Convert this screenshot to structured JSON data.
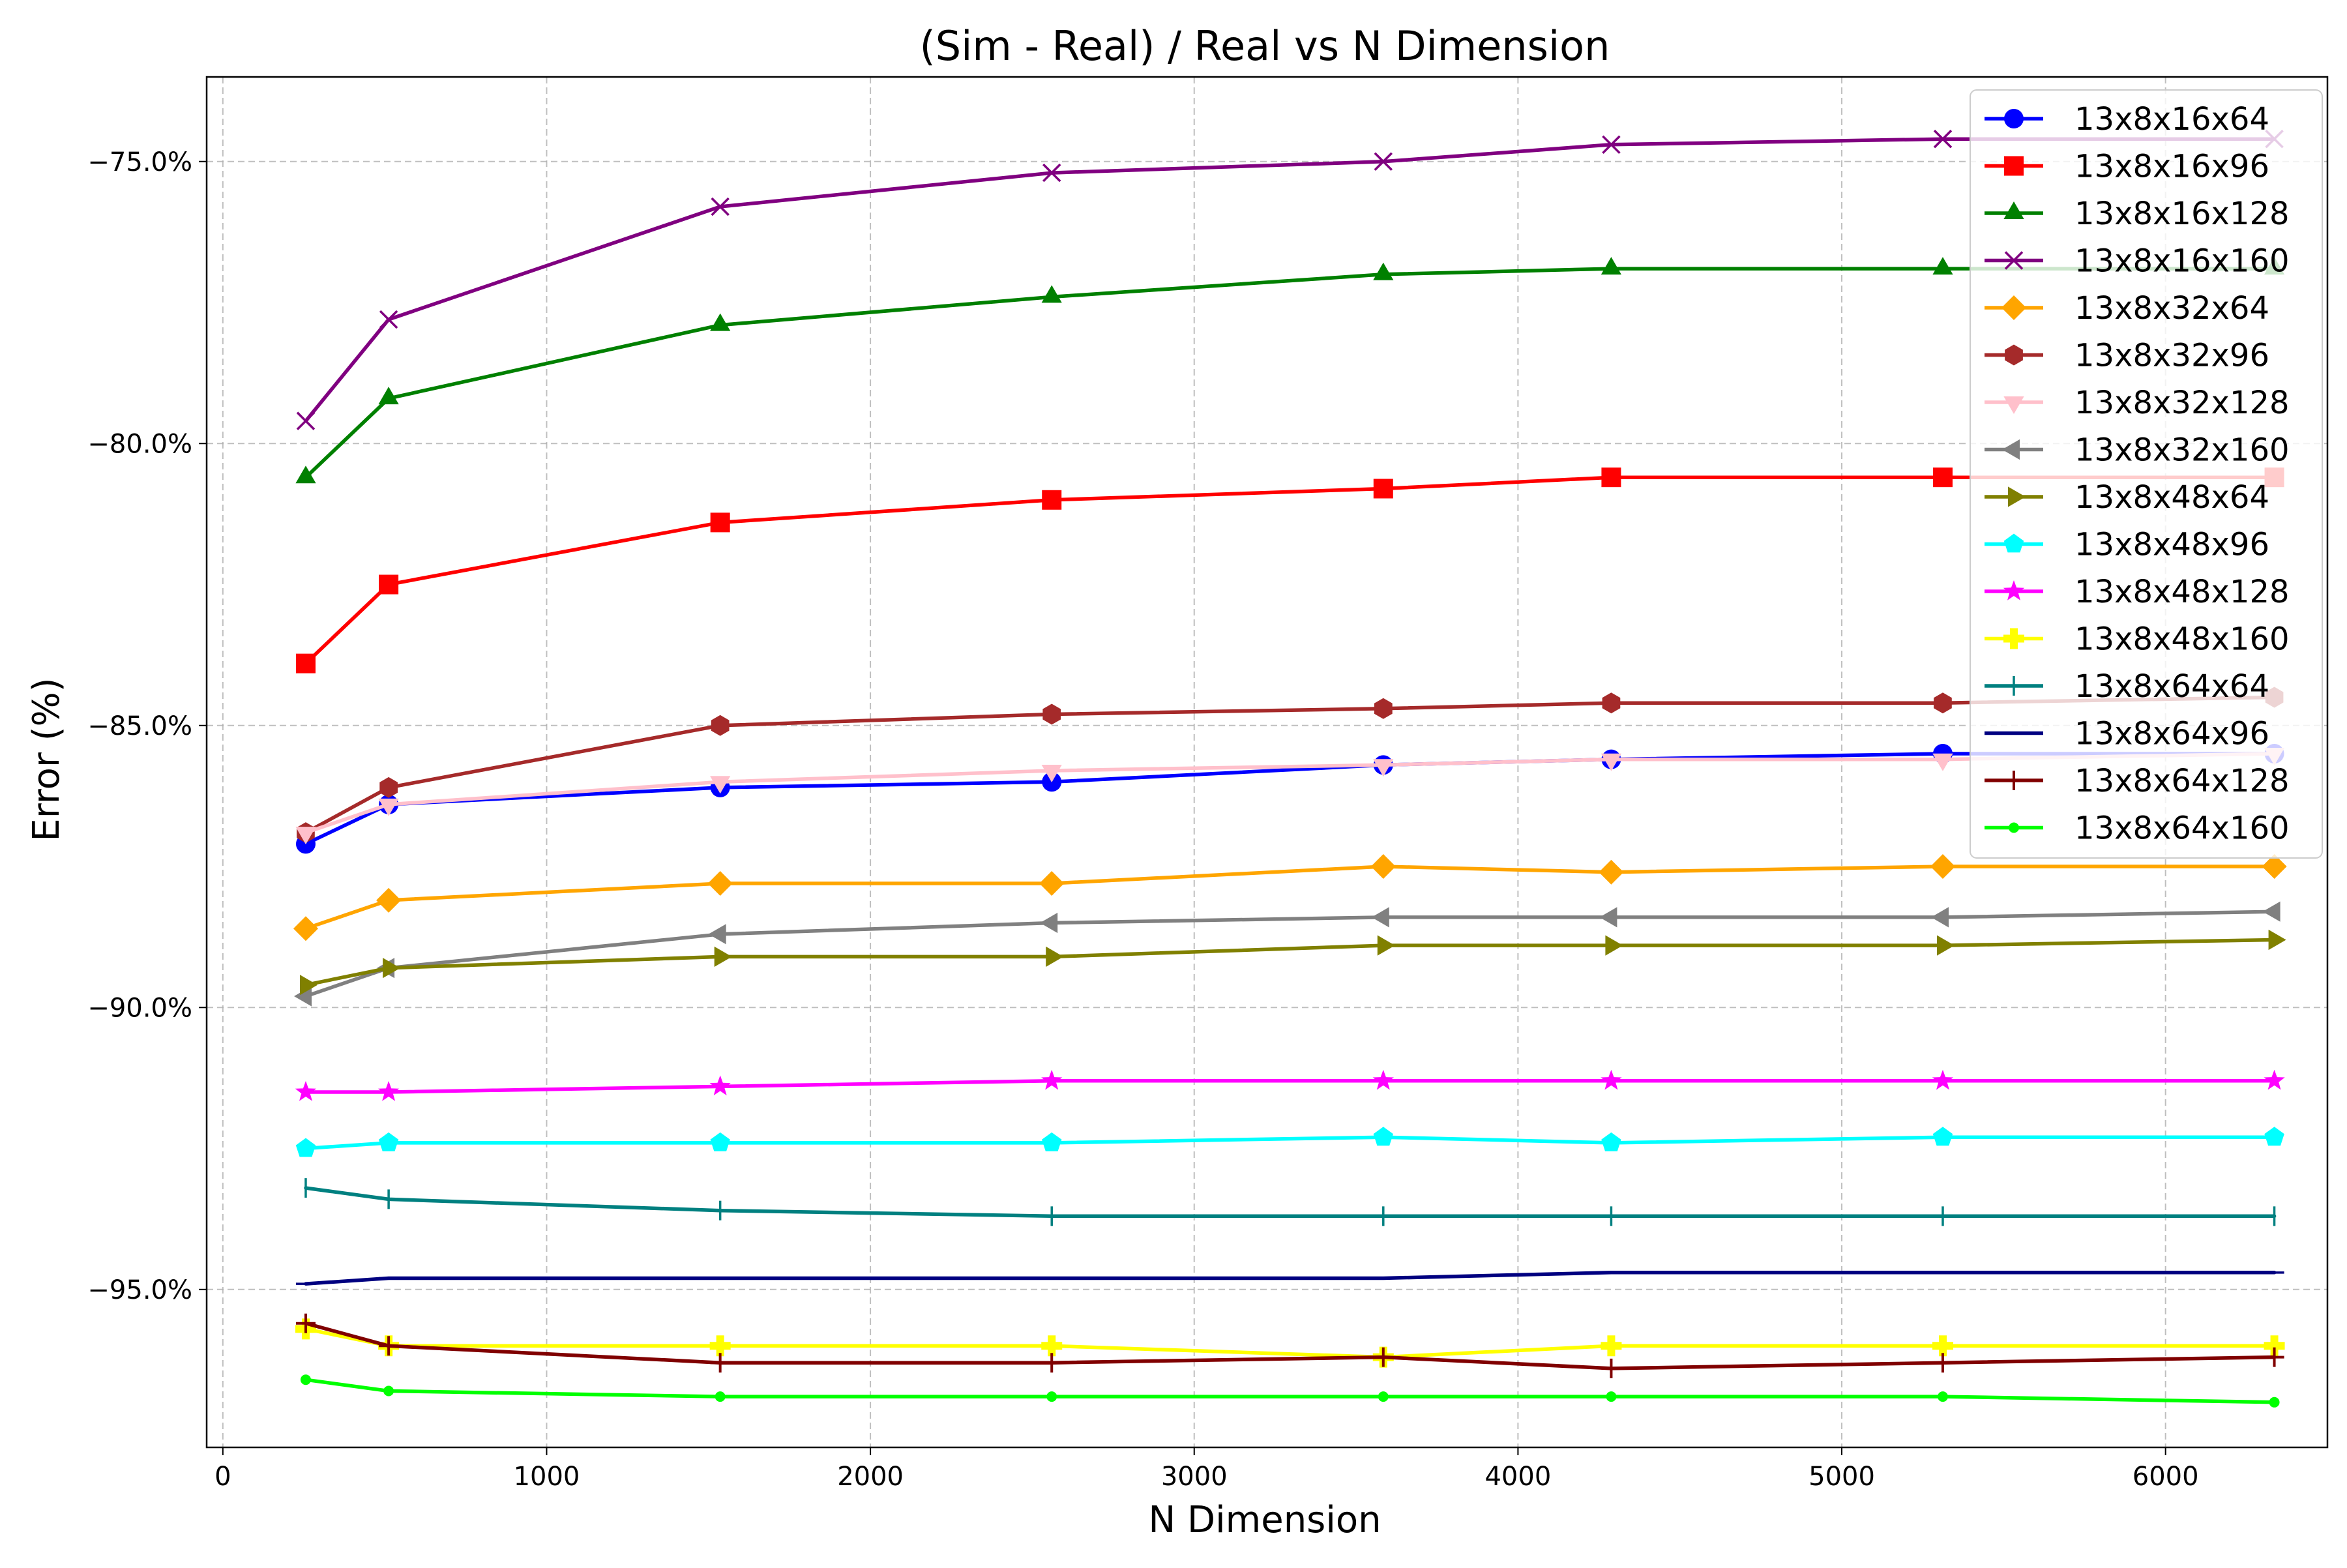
{
  "chart_data": {
    "type": "line",
    "title": "(Sim - Real) / Real vs N Dimension",
    "xlabel": "N Dimension",
    "ylabel": "Error (%)",
    "xlim": [
      -50,
      6500
    ],
    "ylim": [
      -97.8,
      -73.5
    ],
    "x_ticks": [
      0,
      1000,
      2000,
      3000,
      4000,
      5000,
      6000
    ],
    "x_tick_labels": [
      "0",
      "1000",
      "2000",
      "3000",
      "4000",
      "5000",
      "6000"
    ],
    "y_ticks": [
      -75,
      -80,
      -85,
      -90,
      -95
    ],
    "y_tick_labels": [
      "−75.0%",
      "−80.0%",
      "−85.0%",
      "−90.0%",
      "−95.0%"
    ],
    "grid": true,
    "legend_position": "top-right",
    "x": [
      256,
      512,
      1536,
      2560,
      3584,
      4288,
      5312,
      6336
    ],
    "series": [
      {
        "name": "13x8x16x64",
        "color": "#0000ff",
        "marker": "circle",
        "values": [
          -87.1,
          -86.4,
          -86.1,
          -86.0,
          -85.7,
          -85.6,
          -85.5,
          -85.5
        ]
      },
      {
        "name": "13x8x16x96",
        "color": "#ff0000",
        "marker": "square",
        "values": [
          -83.9,
          -82.5,
          -81.4,
          -81.0,
          -80.8,
          -80.6,
          -80.6,
          -80.6
        ]
      },
      {
        "name": "13x8x16x128",
        "color": "#008000",
        "marker": "triangle-up",
        "values": [
          -80.6,
          -79.2,
          -77.9,
          -77.4,
          -77.0,
          -76.9,
          -76.9,
          -76.9
        ]
      },
      {
        "name": "13x8x16x160",
        "color": "#800080",
        "marker": "x",
        "values": [
          -79.6,
          -77.8,
          -75.8,
          -75.2,
          -75.0,
          -74.7,
          -74.6,
          -74.6
        ]
      },
      {
        "name": "13x8x32x64",
        "color": "#ffa500",
        "marker": "diamond",
        "values": [
          -88.6,
          -88.1,
          -87.8,
          -87.8,
          -87.5,
          -87.6,
          -87.5,
          -87.5
        ]
      },
      {
        "name": "13x8x32x96",
        "color": "#a52a2a",
        "marker": "hexagon",
        "values": [
          -86.9,
          -86.1,
          -85.0,
          -84.8,
          -84.7,
          -84.6,
          -84.6,
          -84.5
        ]
      },
      {
        "name": "13x8x32x128",
        "color": "#ffc0cb",
        "marker": "triangle-down",
        "values": [
          -86.9,
          -86.4,
          -86.0,
          -85.8,
          -85.7,
          -85.6,
          -85.6,
          -85.5
        ]
      },
      {
        "name": "13x8x32x160",
        "color": "#808080",
        "marker": "triangle-left",
        "values": [
          -89.8,
          -89.3,
          -88.7,
          -88.5,
          -88.4,
          -88.4,
          -88.4,
          -88.3
        ]
      },
      {
        "name": "13x8x48x64",
        "color": "#808000",
        "marker": "triangle-right",
        "values": [
          -89.6,
          -89.3,
          -89.1,
          -89.1,
          -88.9,
          -88.9,
          -88.9,
          -88.8
        ]
      },
      {
        "name": "13x8x48x96",
        "color": "#00ffff",
        "marker": "pentagon",
        "values": [
          -92.5,
          -92.4,
          -92.4,
          -92.4,
          -92.3,
          -92.4,
          -92.3,
          -92.3
        ]
      },
      {
        "name": "13x8x48x128",
        "color": "#ff00ff",
        "marker": "star",
        "values": [
          -91.5,
          -91.5,
          -91.4,
          -91.3,
          -91.3,
          -91.3,
          -91.3,
          -91.3
        ]
      },
      {
        "name": "13x8x48x160",
        "color": "#ffff00",
        "marker": "plus-filled",
        "values": [
          -95.7,
          -96.0,
          -96.0,
          -96.0,
          -96.2,
          -96.0,
          -96.0,
          -96.0
        ]
      },
      {
        "name": "13x8x64x64",
        "color": "#008080",
        "marker": "vline",
        "values": [
          -93.2,
          -93.4,
          -93.6,
          -93.7,
          -93.7,
          -93.7,
          -93.7,
          -93.7
        ]
      },
      {
        "name": "13x8x64x96",
        "color": "#000080",
        "marker": "hline",
        "values": [
          -94.9,
          -94.8,
          -94.8,
          -94.8,
          -94.8,
          -94.7,
          -94.7,
          -94.7
        ]
      },
      {
        "name": "13x8x64x128",
        "color": "#800000",
        "marker": "plus",
        "values": [
          -95.6,
          -96.0,
          -96.3,
          -96.3,
          -96.2,
          -96.4,
          -96.3,
          -96.2
        ]
      },
      {
        "name": "13x8x64x160",
        "color": "#00ff00",
        "marker": "point",
        "values": [
          -96.6,
          -96.8,
          -96.9,
          -96.9,
          -96.9,
          -96.9,
          -96.9,
          -97.0
        ]
      }
    ]
  }
}
